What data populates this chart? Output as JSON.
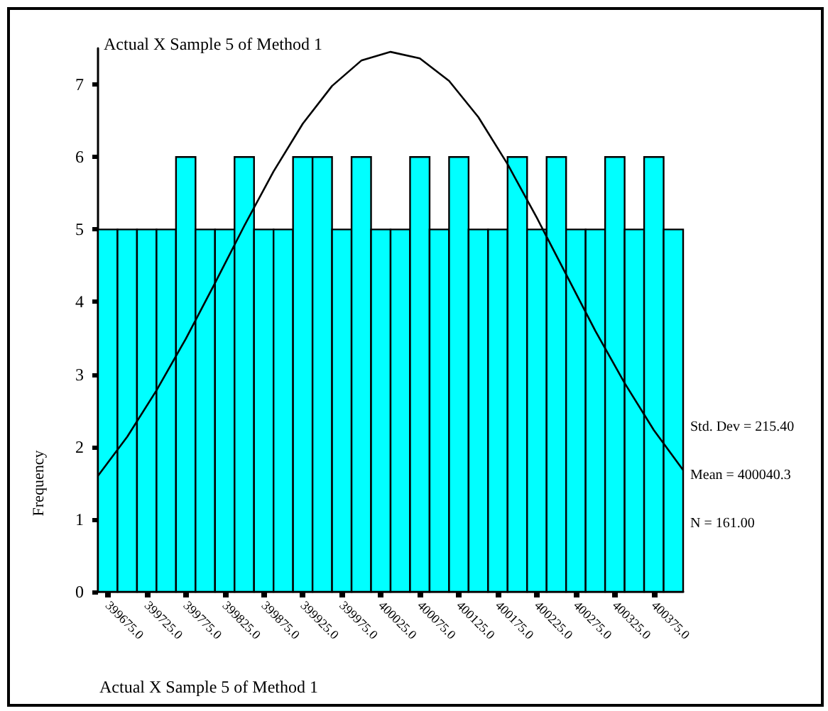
{
  "chart_data": {
    "type": "histogram",
    "title": "Actual X Sample 5 of Method 1",
    "ylabel": "Frequency",
    "annotations": [
      "Std. Dev = 215.40",
      "Mean = 400040.3",
      "N = 161.00",
      "Actual X Sample 5 of Method 1"
    ],
    "series": [
      {
        "color": "#00ffff",
        "bins": [
          399662.5,
          399687.5,
          399712.5,
          399737.5,
          399762.5,
          399787.5,
          399812.5,
          399837.5,
          399862.5,
          399887.5,
          399912.5,
          399937.5,
          399962.5,
          399987.5,
          400012.5,
          400037.5,
          400062.5,
          400087.5,
          400112.5,
          400137.5,
          400162.5,
          400187.5,
          400212.5,
          400237.5,
          400262.5,
          400287.5,
          400312.5,
          400337.5,
          400362.5,
          400387.5,
          400412.5
        ],
        "values": [
          5,
          5,
          5,
          5,
          6,
          5,
          5,
          6,
          5,
          5,
          6,
          6,
          5,
          6,
          5,
          5,
          6,
          5,
          6,
          5,
          5,
          6,
          5,
          6,
          5,
          5,
          6,
          5,
          6,
          5
        ]
      },
      {
        "type": "line",
        "color": "#000000",
        "x": [
          399662.5,
          399700,
          399737.5,
          399775,
          399812.5,
          399850,
          399887.5,
          399925,
          399962.5,
          400000,
          400037.5,
          400075,
          400112.5,
          400150,
          400187.5,
          400225,
          400262.5,
          400300,
          400337.5,
          400375,
          400412.5
        ],
        "values": [
          1.6,
          2.14,
          2.78,
          3.49,
          4.26,
          5.05,
          5.8,
          6.46,
          6.98,
          7.33,
          7.45,
          7.36,
          7.05,
          6.55,
          5.9,
          5.16,
          4.38,
          3.6,
          2.88,
          2.23,
          1.68
        ]
      }
    ],
    "xlim": [
      399662.5,
      400412.5
    ],
    "xticks": [
      {
        "value": 399675,
        "label": "399675.0"
      },
      {
        "value": 399725,
        "label": "399725.0"
      },
      {
        "value": 399775,
        "label": "399775.0"
      },
      {
        "value": 399825,
        "label": "399825.0"
      },
      {
        "value": 399875,
        "label": "399875.0"
      },
      {
        "value": 399925,
        "label": "399925.0"
      },
      {
        "value": 399975,
        "label": "399975.0"
      },
      {
        "value": 400025,
        "label": "400025.0"
      },
      {
        "value": 400075,
        "label": "400075.0"
      },
      {
        "value": 400125,
        "label": "400125.0"
      },
      {
        "value": 400175,
        "label": "400175.0"
      },
      {
        "value": 400225,
        "label": "400225.0"
      },
      {
        "value": 400275,
        "label": "400275.0"
      },
      {
        "value": 400325,
        "label": "400325.0"
      },
      {
        "value": 400375,
        "label": "400375.0"
      }
    ],
    "ylim": [
      0,
      7.5
    ],
    "yticks": [
      0,
      1,
      2,
      3,
      4,
      5,
      6,
      7
    ],
    "grid": false
  }
}
